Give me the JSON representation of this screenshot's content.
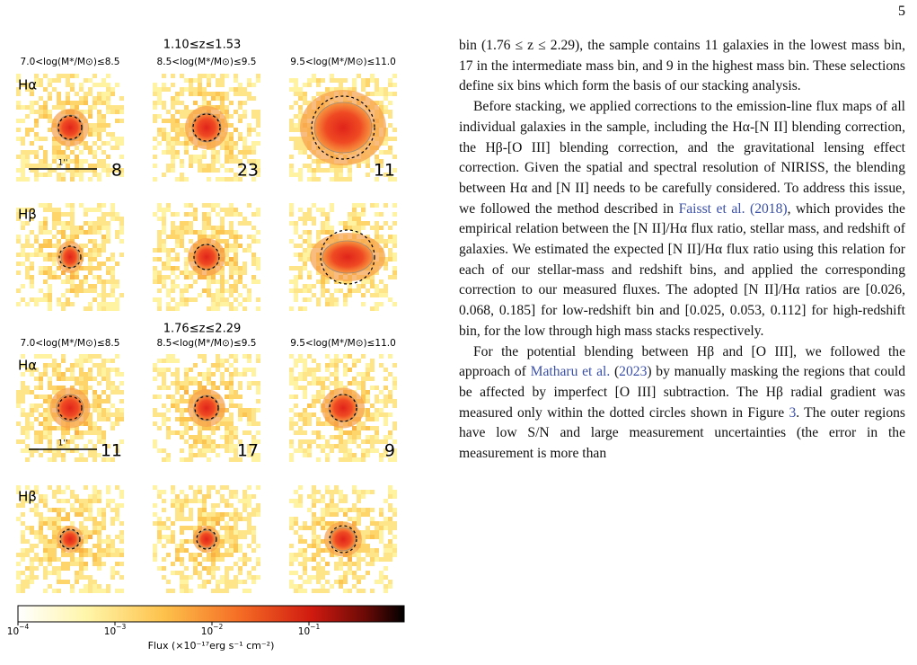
{
  "page_number": "5",
  "figure": {
    "blocks": [
      {
        "redshift": "1.10≤z≤1.53",
        "mass_bins": [
          "7.0<log(M*/M⊙)≤8.5",
          "8.5<log(M*/M⊙)≤9.5",
          "9.5<log(M*/M⊙)≤11.0"
        ],
        "lines": [
          "Hα",
          "Hβ"
        ],
        "counts": [
          8,
          23,
          11
        ]
      },
      {
        "redshift": "1.76≤z≤2.29",
        "mass_bins": [
          "7.0<log(M*/M⊙)≤8.5",
          "8.5<log(M*/M⊙)≤9.5",
          "9.5<log(M*/M⊙)≤11.0"
        ],
        "lines": [
          "Hα",
          "Hβ"
        ],
        "counts": [
          11,
          17,
          9
        ]
      }
    ],
    "scale_bar": "1''",
    "colorbar": {
      "ticks": [
        {
          "base": "10",
          "exp": "−4"
        },
        {
          "base": "10",
          "exp": "−3"
        },
        {
          "base": "10",
          "exp": "−2"
        },
        {
          "base": "10",
          "exp": "−1"
        }
      ],
      "label": "Flux (×10⁻¹⁷erg s⁻¹ cm⁻²)"
    }
  },
  "text": {
    "paragraphs": [
      [
        {
          "text": "bin (1.76 ≤ z ≤ 2.29), the sample contains 11 galaxies in the lowest mass bin, 17 in the intermediate mass bin, and 9 in the highest mass bin. These selections define six bins which form the basis of our stacking analysis."
        }
      ],
      [
        {
          "text": "Before stacking, we applied corrections to the emission-line flux maps of all individual galaxies in the sample, including the Hα-[N II] blending correction, the Hβ-[O III] blending correction, and the gravitational lensing effect correction. Given the spatial and spectral resolution of NIRISS, the blending between Hα and [N II] needs to be carefully considered. To address this issue, we followed the method described in "
        },
        {
          "link": "Faisst et al. (2018)"
        },
        {
          "text": ", which provides the empirical relation between the [N II]/Hα flux ratio, stellar mass, and redshift of galaxies. We estimated the expected [N II]/Hα flux ratio using this relation for each of our stellar-mass and redshift bins, and applied the corresponding correction to our measured fluxes. The adopted [N II]/Hα ratios are [0.026, 0.068, 0.185] for low-redshift bin and [0.025, 0.053, 0.112] for high-redshift bin, for the low through high mass stacks respectively."
        }
      ],
      [
        {
          "text": "For the potential blending between Hβ and [O III], we followed the approach of "
        },
        {
          "link": "Matharu et al."
        },
        {
          "text": " ("
        },
        {
          "link": "2023"
        },
        {
          "text": ") by manually masking the regions that could be affected by imperfect [O III] subtraction. The Hβ radial gradient was measured only within the dotted circles shown in Figure "
        },
        {
          "link": "3"
        },
        {
          "text": ". The outer regions have low S/N and large measurement uncertainties (the error in the measurement is more than"
        }
      ]
    ]
  }
}
